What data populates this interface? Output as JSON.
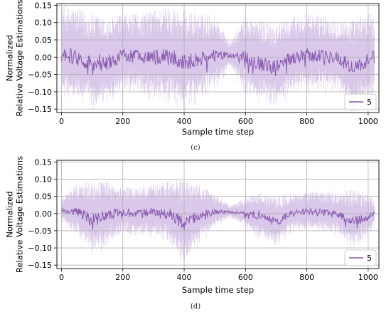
{
  "chart_data": [
    {
      "type": "line",
      "caption": "(c)",
      "xlabel": "Sample time step",
      "ylabel_lines": [
        "Normalized",
        "Relative Voltage Estimations"
      ],
      "xlim": [
        -15,
        1035
      ],
      "ylim": [
        -0.16,
        0.155
      ],
      "xticks": [
        0,
        200,
        400,
        600,
        800,
        1000
      ],
      "yticks": [
        -0.15,
        -0.1,
        -0.05,
        0.0,
        0.05,
        0.1,
        0.15
      ],
      "ytick_labels": [
        "−0.15",
        "−0.10",
        "−0.05",
        "0.00",
        "0.05",
        "0.10",
        "0.15"
      ],
      "grid": true,
      "legend": {
        "position": "lower-right",
        "entries": [
          "5"
        ]
      },
      "colors": {
        "mean": "#8a5ab2",
        "band": "#d9c8e9"
      },
      "series": [
        {
          "name": "5",
          "x": [
            0,
            50,
            100,
            150,
            200,
            250,
            300,
            350,
            400,
            450,
            500,
            550,
            600,
            650,
            700,
            750,
            800,
            850,
            900,
            950,
            1000,
            1020
          ],
          "values": [
            0.01,
            0.0,
            -0.02,
            -0.02,
            0.005,
            0.005,
            0.0,
            0.0,
            -0.015,
            -0.005,
            0.005,
            0.005,
            0.0,
            -0.02,
            -0.03,
            0.0,
            0.005,
            0.005,
            -0.005,
            -0.03,
            -0.01,
            0.0
          ],
          "spread": [
            0.14,
            0.14,
            0.15,
            0.13,
            0.12,
            0.12,
            0.14,
            0.15,
            0.15,
            0.13,
            0.12,
            0.04,
            0.12,
            0.13,
            0.13,
            0.12,
            0.12,
            0.12,
            0.12,
            0.14,
            0.14,
            0.12
          ]
        }
      ]
    },
    {
      "type": "line",
      "caption": "(d)",
      "xlabel": "Sample time step",
      "ylabel_lines": [
        "Normalized",
        "Relative Voltage Estimations"
      ],
      "xlim": [
        -15,
        1035
      ],
      "ylim": [
        -0.16,
        0.155
      ],
      "xticks": [
        0,
        200,
        400,
        600,
        800,
        1000
      ],
      "yticks": [
        -0.15,
        -0.1,
        -0.05,
        0.0,
        0.05,
        0.1,
        0.15
      ],
      "ytick_labels": [
        "−0.15",
        "−0.10",
        "−0.05",
        "0.00",
        "0.05",
        "0.10",
        "0.15"
      ],
      "grid": true,
      "legend": {
        "position": "lower-right",
        "entries": [
          "5"
        ]
      },
      "colors": {
        "mean": "#8a5ab2",
        "band": "#d9c8e9"
      },
      "series": [
        {
          "name": "5",
          "x": [
            0,
            50,
            100,
            150,
            200,
            250,
            300,
            350,
            400,
            450,
            500,
            550,
            600,
            650,
            700,
            750,
            800,
            850,
            900,
            950,
            1000,
            1020
          ],
          "values": [
            0.01,
            0.005,
            -0.02,
            -0.005,
            0.005,
            0.0,
            0.005,
            0.0,
            -0.03,
            -0.005,
            0.005,
            0.005,
            0.0,
            -0.01,
            -0.025,
            0.0,
            0.005,
            0.005,
            -0.005,
            -0.02,
            -0.01,
            0.0
          ],
          "spread": [
            0.04,
            0.08,
            0.12,
            0.1,
            0.07,
            0.08,
            0.08,
            0.1,
            0.13,
            0.09,
            0.05,
            0.02,
            0.05,
            0.07,
            0.08,
            0.06,
            0.06,
            0.06,
            0.07,
            0.09,
            0.07,
            0.04
          ]
        }
      ]
    }
  ]
}
